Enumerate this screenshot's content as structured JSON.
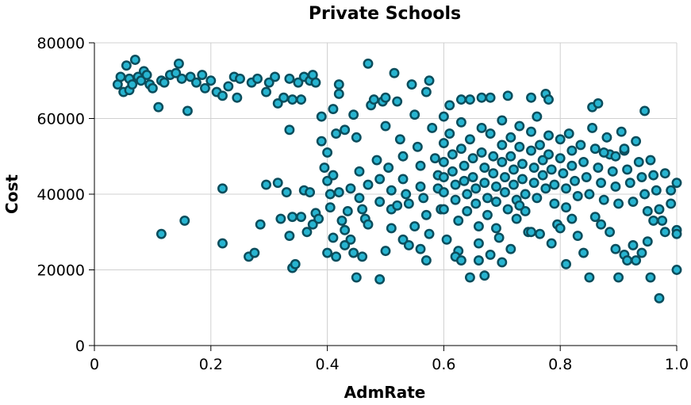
{
  "chart_data": {
    "type": "scatter",
    "title": "Private Schools",
    "xlabel": "AdmRate",
    "ylabel": "Cost",
    "xlim": [
      0,
      1.0
    ],
    "ylim": [
      0,
      80000
    ],
    "x_ticks": [
      "0",
      "0.2",
      "0.4",
      "0.6",
      "0.8",
      "1.0"
    ],
    "y_ticks": [
      "0",
      "20000",
      "40000",
      "60000",
      "80000"
    ],
    "grid": true,
    "marker_fill": "#27b4d0",
    "marker_edge": "#0b4d5c",
    "points": [
      [
        0.04,
        69000
      ],
      [
        0.045,
        71000
      ],
      [
        0.05,
        67000
      ],
      [
        0.055,
        74000
      ],
      [
        0.06,
        67500
      ],
      [
        0.06,
        70500
      ],
      [
        0.065,
        69000
      ],
      [
        0.07,
        75500
      ],
      [
        0.075,
        71000
      ],
      [
        0.08,
        70000
      ],
      [
        0.085,
        72500
      ],
      [
        0.09,
        71500
      ],
      [
        0.095,
        69000
      ],
      [
        0.1,
        68000
      ],
      [
        0.11,
        63000
      ],
      [
        0.115,
        70000
      ],
      [
        0.12,
        69500
      ],
      [
        0.13,
        71500
      ],
      [
        0.14,
        72000
      ],
      [
        0.145,
        74500
      ],
      [
        0.15,
        70500
      ],
      [
        0.16,
        62000
      ],
      [
        0.165,
        71000
      ],
      [
        0.175,
        69500
      ],
      [
        0.185,
        71500
      ],
      [
        0.19,
        68000
      ],
      [
        0.2,
        70000
      ],
      [
        0.21,
        67000
      ],
      [
        0.22,
        66000
      ],
      [
        0.23,
        68500
      ],
      [
        0.24,
        71000
      ],
      [
        0.245,
        65500
      ],
      [
        0.25,
        70500
      ],
      [
        0.27,
        69500
      ],
      [
        0.28,
        70500
      ],
      [
        0.295,
        67000
      ],
      [
        0.3,
        69500
      ],
      [
        0.31,
        71000
      ],
      [
        0.315,
        64000
      ],
      [
        0.325,
        65500
      ],
      [
        0.335,
        70500
      ],
      [
        0.34,
        65000
      ],
      [
        0.35,
        69500
      ],
      [
        0.355,
        65000
      ],
      [
        0.36,
        71000
      ],
      [
        0.37,
        70000
      ],
      [
        0.375,
        71500
      ],
      [
        0.38,
        69500
      ],
      [
        0.115,
        29500
      ],
      [
        0.155,
        33000
      ],
      [
        0.22,
        41500
      ],
      [
        0.22,
        27000
      ],
      [
        0.265,
        23500
      ],
      [
        0.275,
        24500
      ],
      [
        0.285,
        32000
      ],
      [
        0.295,
        42500
      ],
      [
        0.315,
        43000
      ],
      [
        0.32,
        33500
      ],
      [
        0.33,
        40500
      ],
      [
        0.335,
        29000
      ],
      [
        0.34,
        34000
      ],
      [
        0.34,
        20500
      ],
      [
        0.345,
        21500
      ],
      [
        0.355,
        34000
      ],
      [
        0.36,
        41000
      ],
      [
        0.365,
        30000
      ],
      [
        0.37,
        40500
      ],
      [
        0.375,
        32000
      ],
      [
        0.38,
        35000
      ],
      [
        0.385,
        33500
      ],
      [
        0.335,
        57000
      ],
      [
        0.39,
        60500
      ],
      [
        0.39,
        54000
      ],
      [
        0.395,
        47000
      ],
      [
        0.4,
        51000
      ],
      [
        0.4,
        43500
      ],
      [
        0.405,
        40000
      ],
      [
        0.405,
        36500
      ],
      [
        0.41,
        62500
      ],
      [
        0.41,
        45000
      ],
      [
        0.415,
        56000
      ],
      [
        0.42,
        69000
      ],
      [
        0.42,
        66500
      ],
      [
        0.42,
        40500
      ],
      [
        0.425,
        33000
      ],
      [
        0.43,
        30500
      ],
      [
        0.43,
        57000
      ],
      [
        0.435,
        35500
      ],
      [
        0.44,
        28000
      ],
      [
        0.44,
        41500
      ],
      [
        0.445,
        61000
      ],
      [
        0.45,
        55000
      ],
      [
        0.455,
        46000
      ],
      [
        0.455,
        39000
      ],
      [
        0.46,
        36000
      ],
      [
        0.465,
        33500
      ],
      [
        0.47,
        42500
      ],
      [
        0.47,
        74500
      ],
      [
        0.475,
        63500
      ],
      [
        0.48,
        65000
      ],
      [
        0.485,
        49000
      ],
      [
        0.49,
        44000
      ],
      [
        0.49,
        38000
      ],
      [
        0.495,
        64500
      ],
      [
        0.5,
        65500
      ],
      [
        0.5,
        58000
      ],
      [
        0.505,
        47000
      ],
      [
        0.51,
        41000
      ],
      [
        0.51,
        36000
      ],
      [
        0.515,
        72000
      ],
      [
        0.52,
        64500
      ],
      [
        0.525,
        54500
      ],
      [
        0.53,
        50000
      ],
      [
        0.53,
        44000
      ],
      [
        0.535,
        40000
      ],
      [
        0.54,
        37500
      ],
      [
        0.545,
        69000
      ],
      [
        0.55,
        61000
      ],
      [
        0.555,
        52500
      ],
      [
        0.56,
        47500
      ],
      [
        0.56,
        42000
      ],
      [
        0.565,
        39000
      ],
      [
        0.57,
        34500
      ],
      [
        0.57,
        67000
      ],
      [
        0.575,
        70000
      ],
      [
        0.58,
        57500
      ],
      [
        0.585,
        49500
      ],
      [
        0.59,
        45000
      ],
      [
        0.59,
        41500
      ],
      [
        0.595,
        36000
      ],
      [
        0.6,
        60500
      ],
      [
        0.4,
        24500
      ],
      [
        0.41,
        28500
      ],
      [
        0.415,
        23500
      ],
      [
        0.43,
        26500
      ],
      [
        0.445,
        24500
      ],
      [
        0.45,
        18000
      ],
      [
        0.46,
        23500
      ],
      [
        0.47,
        32000
      ],
      [
        0.49,
        17500
      ],
      [
        0.5,
        25000
      ],
      [
        0.51,
        31000
      ],
      [
        0.52,
        37000
      ],
      [
        0.53,
        28000
      ],
      [
        0.54,
        26500
      ],
      [
        0.55,
        31500
      ],
      [
        0.56,
        25500
      ],
      [
        0.57,
        22500
      ],
      [
        0.575,
        29500
      ],
      [
        0.6,
        53500
      ],
      [
        0.6,
        48500
      ],
      [
        0.6,
        44500
      ],
      [
        0.6,
        40500
      ],
      [
        0.6,
        36000
      ],
      [
        0.605,
        28000
      ],
      [
        0.61,
        63500
      ],
      [
        0.61,
        56000
      ],
      [
        0.615,
        50500
      ],
      [
        0.615,
        46000
      ],
      [
        0.62,
        42500
      ],
      [
        0.62,
        38500
      ],
      [
        0.625,
        33000
      ],
      [
        0.625,
        25000
      ],
      [
        0.63,
        59000
      ],
      [
        0.63,
        52000
      ],
      [
        0.635,
        47500
      ],
      [
        0.635,
        43500
      ],
      [
        0.64,
        40000
      ],
      [
        0.64,
        35500
      ],
      [
        0.645,
        65000
      ],
      [
        0.645,
        54500
      ],
      [
        0.65,
        49500
      ],
      [
        0.65,
        44500
      ],
      [
        0.655,
        41500
      ],
      [
        0.655,
        37500
      ],
      [
        0.66,
        31500
      ],
      [
        0.66,
        22500
      ],
      [
        0.665,
        57500
      ],
      [
        0.665,
        51000
      ],
      [
        0.67,
        47000
      ],
      [
        0.67,
        43000
      ],
      [
        0.675,
        39000
      ],
      [
        0.675,
        34500
      ],
      [
        0.68,
        65500
      ],
      [
        0.68,
        56000
      ],
      [
        0.685,
        50000
      ],
      [
        0.685,
        45500
      ],
      [
        0.69,
        42000
      ],
      [
        0.69,
        38000
      ],
      [
        0.695,
        28500
      ],
      [
        0.7,
        59500
      ],
      [
        0.7,
        53000
      ],
      [
        0.7,
        48500
      ],
      [
        0.705,
        44500
      ],
      [
        0.705,
        40500
      ],
      [
        0.71,
        36000
      ],
      [
        0.71,
        66000
      ],
      [
        0.715,
        55000
      ],
      [
        0.715,
        50000
      ],
      [
        0.72,
        46500
      ],
      [
        0.72,
        42500
      ],
      [
        0.725,
        38500
      ],
      [
        0.725,
        33500
      ],
      [
        0.73,
        58000
      ],
      [
        0.73,
        52500
      ],
      [
        0.735,
        48000
      ],
      [
        0.735,
        44000
      ],
      [
        0.74,
        40000
      ],
      [
        0.74,
        35500
      ],
      [
        0.745,
        30000
      ],
      [
        0.75,
        56500
      ],
      [
        0.75,
        51500
      ],
      [
        0.755,
        47000
      ],
      [
        0.755,
        43000
      ],
      [
        0.76,
        39000
      ],
      [
        0.76,
        60500
      ],
      [
        0.765,
        53000
      ],
      [
        0.77,
        49000
      ],
      [
        0.77,
        45000
      ],
      [
        0.775,
        41500
      ],
      [
        0.775,
        66500
      ],
      [
        0.78,
        55500
      ],
      [
        0.78,
        50500
      ],
      [
        0.785,
        46500
      ],
      [
        0.79,
        42500
      ],
      [
        0.79,
        37500
      ],
      [
        0.795,
        32000
      ],
      [
        0.8,
        54500
      ],
      [
        0.8,
        49500
      ],
      [
        0.805,
        45500
      ],
      [
        0.81,
        41500
      ],
      [
        0.81,
        36500
      ],
      [
        0.815,
        56000
      ],
      [
        0.82,
        51500
      ],
      [
        0.82,
        47500
      ],
      [
        0.825,
        43500
      ],
      [
        0.83,
        39500
      ],
      [
        0.835,
        53000
      ],
      [
        0.84,
        48500
      ],
      [
        0.845,
        44500
      ],
      [
        0.85,
        40000
      ],
      [
        0.855,
        57500
      ],
      [
        0.86,
        52000
      ],
      [
        0.865,
        47000
      ],
      [
        0.87,
        43000
      ],
      [
        0.875,
        38500
      ],
      [
        0.88,
        55000
      ],
      [
        0.885,
        50500
      ],
      [
        0.89,
        46000
      ],
      [
        0.895,
        42000
      ],
      [
        0.9,
        37500
      ],
      [
        0.905,
        56500
      ],
      [
        0.91,
        51500
      ],
      [
        0.915,
        46500
      ],
      [
        0.92,
        43000
      ],
      [
        0.925,
        38000
      ],
      [
        0.93,
        54000
      ],
      [
        0.935,
        48500
      ],
      [
        0.94,
        44500
      ],
      [
        0.945,
        40000
      ],
      [
        0.95,
        35500
      ],
      [
        0.955,
        49000
      ],
      [
        0.96,
        45000
      ],
      [
        0.965,
        41000
      ],
      [
        0.97,
        36000
      ],
      [
        0.975,
        33000
      ],
      [
        0.98,
        45500
      ],
      [
        0.99,
        41000
      ],
      [
        1.0,
        43000
      ],
      [
        0.62,
        23500
      ],
      [
        0.63,
        22500
      ],
      [
        0.645,
        18000
      ],
      [
        0.66,
        27000
      ],
      [
        0.67,
        18500
      ],
      [
        0.68,
        24000
      ],
      [
        0.69,
        31000
      ],
      [
        0.7,
        22000
      ],
      [
        0.715,
        25500
      ],
      [
        0.73,
        37000
      ],
      [
        0.75,
        30000
      ],
      [
        0.765,
        29500
      ],
      [
        0.785,
        27000
      ],
      [
        0.8,
        31000
      ],
      [
        0.81,
        21500
      ],
      [
        0.82,
        33500
      ],
      [
        0.83,
        29000
      ],
      [
        0.84,
        24500
      ],
      [
        0.85,
        18000
      ],
      [
        0.86,
        34000
      ],
      [
        0.87,
        32000
      ],
      [
        0.885,
        30000
      ],
      [
        0.895,
        25500
      ],
      [
        0.9,
        18000
      ],
      [
        0.91,
        24000
      ],
      [
        0.915,
        22500
      ],
      [
        0.925,
        26500
      ],
      [
        0.93,
        22500
      ],
      [
        0.94,
        24500
      ],
      [
        0.95,
        27500
      ],
      [
        0.955,
        18000
      ],
      [
        0.96,
        33000
      ],
      [
        0.97,
        12500
      ],
      [
        0.98,
        30000
      ],
      [
        0.99,
        37500
      ],
      [
        1.0,
        30500
      ],
      [
        1.0,
        20000
      ],
      [
        1.0,
        29500
      ],
      [
        0.63,
        65000
      ],
      [
        0.665,
        65500
      ],
      [
        0.75,
        65500
      ],
      [
        0.78,
        65000
      ],
      [
        0.855,
        63000
      ],
      [
        0.865,
        64000
      ],
      [
        0.945,
        62000
      ],
      [
        0.91,
        52000
      ],
      [
        0.895,
        50000
      ],
      [
        0.875,
        51000
      ]
    ]
  }
}
